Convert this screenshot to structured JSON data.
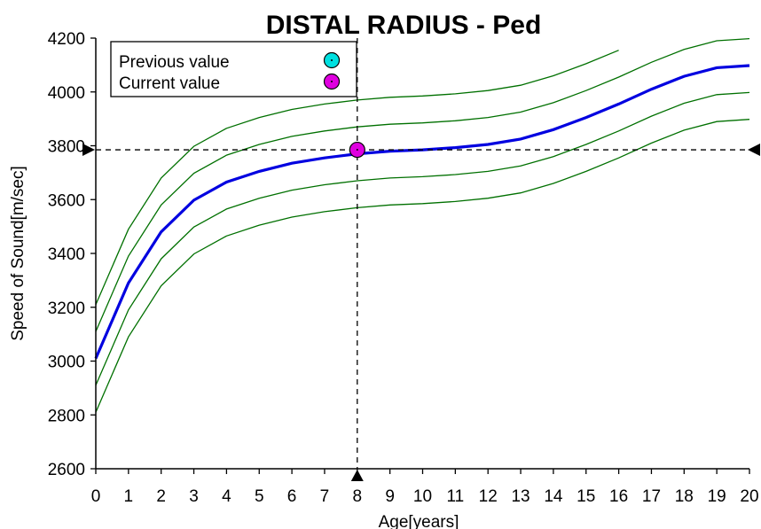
{
  "chart_data": {
    "type": "line",
    "title": "DISTAL RADIUS - Ped",
    "xlabel": "Age[years]",
    "ylabel": "Speed of Sound[m/sec]",
    "xlim": [
      0,
      20
    ],
    "ylim": [
      2600,
      4200
    ],
    "x_ticks": [
      "0",
      "1",
      "2",
      "3",
      "4",
      "5",
      "6",
      "7",
      "8",
      "9",
      "10",
      "11",
      "12",
      "13",
      "14",
      "15",
      "16",
      "17",
      "18",
      "19",
      "20"
    ],
    "y_ticks": [
      "2600",
      "2800",
      "3000",
      "3200",
      "3400",
      "3600",
      "3800",
      "4000",
      "4200"
    ],
    "x": [
      0,
      1,
      2,
      3,
      4,
      5,
      6,
      7,
      8,
      9,
      10,
      11,
      12,
      13,
      14,
      15,
      16,
      17,
      18,
      19,
      20
    ],
    "mean": [
      3010,
      3290,
      3480,
      3598,
      3665,
      3705,
      3735,
      3755,
      3770,
      3780,
      3785,
      3793,
      3805,
      3825,
      3860,
      3905,
      3955,
      4010,
      4058,
      4090,
      4098
    ],
    "band_offsets": [
      -200,
      -100,
      100,
      200
    ],
    "colors": {
      "mean": "#0000e0",
      "band": "#007000",
      "current": "#e000e0",
      "previous": "#00e0e0"
    },
    "legend": {
      "position": "top-left",
      "items": [
        {
          "label": "Previous value",
          "color": "#00e0e0"
        },
        {
          "label": "Current value",
          "color": "#e000e0"
        }
      ]
    },
    "current_point": {
      "x": 8,
      "y": 3785
    },
    "grid": false
  }
}
